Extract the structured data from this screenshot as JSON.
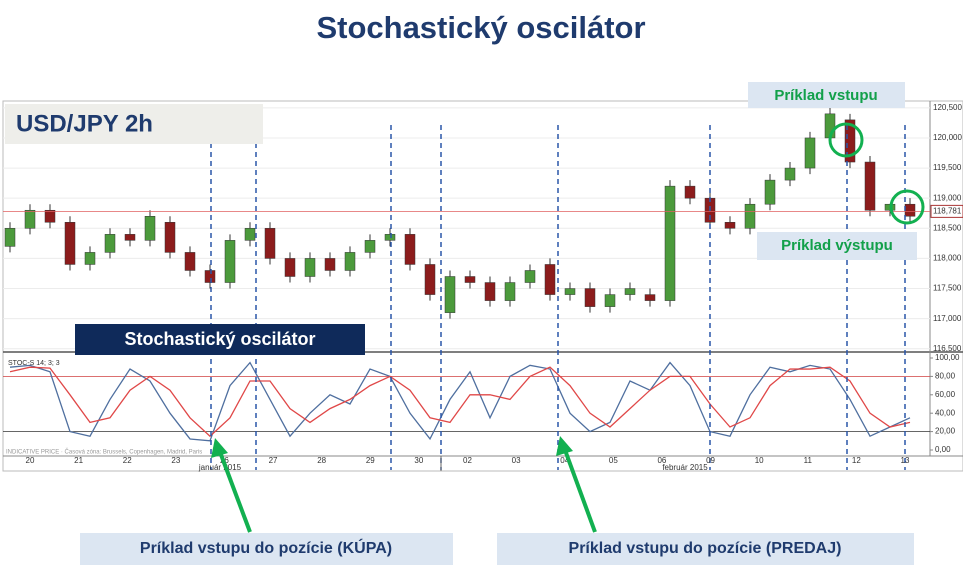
{
  "title": "Stochastický oscilátor",
  "annotations": {
    "pair": "USD/JPY 2h",
    "indicator_box": "Stochastický oscilátor",
    "entry": "Príklad vstupu",
    "exit": "Príklad výstupu",
    "buy": "Príklad vstupu do pozície (KÚPA)",
    "sell": "Príklad vstupu do pozície (PREDAJ)"
  },
  "date_labels": [
    "20",
    "21",
    "22",
    "23",
    "26",
    "27",
    "28",
    "29",
    "30",
    "02",
    "03",
    "04",
    "05",
    "06",
    "09",
    "10",
    "11",
    "12",
    "13"
  ],
  "months": [
    "január 2015",
    "február 2015"
  ],
  "footnote": "INDICATIVE PRICE · Časová zóna: Brussels, Copenhagen, Madrid, Paris",
  "chart_data": [
    {
      "type": "candlestick",
      "open": [
        118.2,
        118.5,
        118.8,
        118.6,
        117.9,
        118.1,
        118.4,
        118.3,
        118.6,
        118.1,
        117.8,
        117.6,
        118.3,
        118.5,
        118.0,
        117.7,
        118.0,
        117.8,
        118.1,
        118.3,
        118.4,
        117.9,
        117.1,
        117.7,
        117.6,
        117.3,
        117.6,
        117.9,
        117.4,
        117.5,
        117.2,
        117.4,
        117.4,
        117.3,
        119.2,
        119.0,
        118.6,
        118.5,
        118.9,
        119.3,
        119.5,
        120.0,
        120.3,
        119.6,
        118.8,
        118.9
      ],
      "high": [
        118.6,
        118.9,
        118.9,
        118.7,
        118.2,
        118.5,
        118.5,
        118.8,
        118.7,
        118.2,
        117.9,
        118.4,
        118.6,
        118.6,
        118.1,
        118.1,
        118.1,
        118.2,
        118.4,
        118.5,
        118.5,
        118.0,
        117.8,
        117.8,
        117.7,
        117.7,
        117.9,
        118.0,
        117.6,
        117.6,
        117.5,
        117.6,
        117.5,
        119.3,
        119.3,
        119.1,
        118.7,
        119.0,
        119.4,
        119.6,
        120.1,
        120.5,
        120.4,
        119.7,
        118.9,
        119.0
      ],
      "low": [
        118.1,
        118.4,
        118.5,
        117.8,
        117.8,
        118.0,
        118.2,
        118.2,
        118.0,
        117.7,
        117.5,
        117.5,
        118.2,
        117.9,
        117.6,
        117.6,
        117.7,
        117.7,
        118.0,
        118.2,
        117.8,
        117.3,
        117.0,
        117.5,
        117.2,
        117.2,
        117.5,
        117.3,
        117.3,
        117.1,
        117.1,
        117.3,
        117.2,
        117.2,
        118.9,
        118.5,
        118.4,
        118.4,
        118.8,
        119.2,
        119.4,
        119.9,
        119.5,
        118.7,
        118.7,
        118.6
      ],
      "close": [
        118.5,
        118.8,
        118.6,
        117.9,
        118.1,
        118.4,
        118.3,
        118.7,
        118.1,
        117.8,
        117.6,
        118.3,
        118.5,
        118.0,
        117.7,
        118.0,
        117.8,
        118.1,
        118.3,
        118.4,
        117.9,
        117.4,
        117.7,
        117.6,
        117.3,
        117.6,
        117.8,
        117.4,
        117.5,
        117.2,
        117.4,
        117.5,
        117.3,
        119.2,
        119.0,
        118.6,
        118.5,
        118.9,
        119.3,
        119.5,
        120.0,
        120.4,
        119.6,
        118.8,
        118.9,
        118.7
      ],
      "up_color": "#4c9a3c",
      "down_color": "#8c1c1c",
      "ylim": [
        116.48,
        120.58
      ],
      "yticks": [
        {
          "value": 116.5,
          "label": "116,500"
        },
        {
          "value": 117,
          "label": "117,000"
        },
        {
          "value": 117.5,
          "label": "117,500"
        },
        {
          "value": 118,
          "label": "118,000"
        },
        {
          "value": 118.5,
          "label": "118,500"
        },
        {
          "value": 119,
          "label": "119,000"
        },
        {
          "value": 119.5,
          "label": "119,500"
        },
        {
          "value": 120,
          "label": "120,000"
        },
        {
          "value": 120.5,
          "label": "120,500"
        }
      ],
      "last_price": {
        "value": 118.781,
        "label": "118,781"
      },
      "grid": true
    },
    {
      "type": "line",
      "title": "STOC-S 14; 3; 3",
      "series": [
        {
          "color": "#4f6f9f",
          "values": [
            90,
            92,
            85,
            20,
            15,
            55,
            88,
            75,
            40,
            12,
            10,
            70,
            95,
            55,
            15,
            40,
            60,
            50,
            88,
            80,
            40,
            12,
            55,
            85,
            35,
            80,
            92,
            88,
            40,
            20,
            30,
            75,
            65,
            95,
            70,
            20,
            15,
            60,
            90,
            85,
            92,
            88,
            55,
            15,
            25,
            35
          ]
        },
        {
          "color": "#e04848",
          "values": [
            85,
            90,
            89,
            60,
            30,
            35,
            65,
            80,
            65,
            35,
            15,
            35,
            75,
            75,
            45,
            30,
            45,
            55,
            70,
            80,
            65,
            35,
            30,
            60,
            60,
            55,
            80,
            90,
            70,
            40,
            25,
            45,
            65,
            80,
            80,
            50,
            25,
            35,
            70,
            88,
            88,
            90,
            75,
            40,
            25,
            30
          ]
        }
      ],
      "ylim": [
        0,
        100
      ],
      "yticks": [
        {
          "value": 0,
          "label": "0,00"
        },
        {
          "value": 20,
          "label": "20,00"
        },
        {
          "value": 40,
          "label": "40,00"
        },
        {
          "value": 60,
          "label": "60,00"
        },
        {
          "value": 80,
          "label": "80,00"
        },
        {
          "value": 100,
          "label": "100,00"
        }
      ],
      "hlines": [
        80,
        20
      ]
    }
  ]
}
